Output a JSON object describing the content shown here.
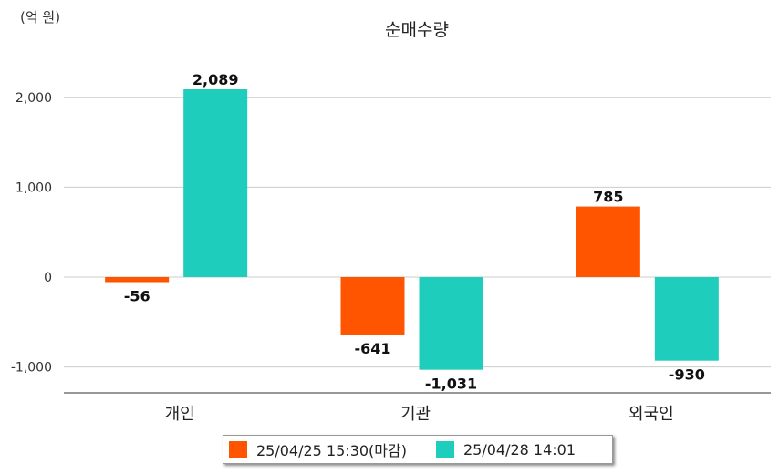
{
  "chart_data": {
    "type": "bar",
    "title": "순매수량",
    "unit_label": "(억 원)",
    "categories": [
      "개인",
      "기관",
      "외국인"
    ],
    "series": [
      {
        "name": "25/04/25 15:30(마감)",
        "color": "#ff5500",
        "values": [
          -56,
          -641,
          785
        ]
      },
      {
        "name": "25/04/28 14:01",
        "color": "#1ecdbb",
        "values": [
          2089,
          -1031,
          -930
        ]
      }
    ],
    "value_labels": [
      [
        "-56",
        "-641",
        "785"
      ],
      [
        "2,089",
        "-1,031",
        "-930"
      ]
    ],
    "yticks": [
      2000,
      1000,
      0,
      -1000
    ],
    "ytick_labels": [
      "2,000",
      "1,000",
      "0",
      "-1,000"
    ],
    "ylim": [
      -1290,
      2000
    ],
    "grid": true,
    "legend": "bottom"
  }
}
